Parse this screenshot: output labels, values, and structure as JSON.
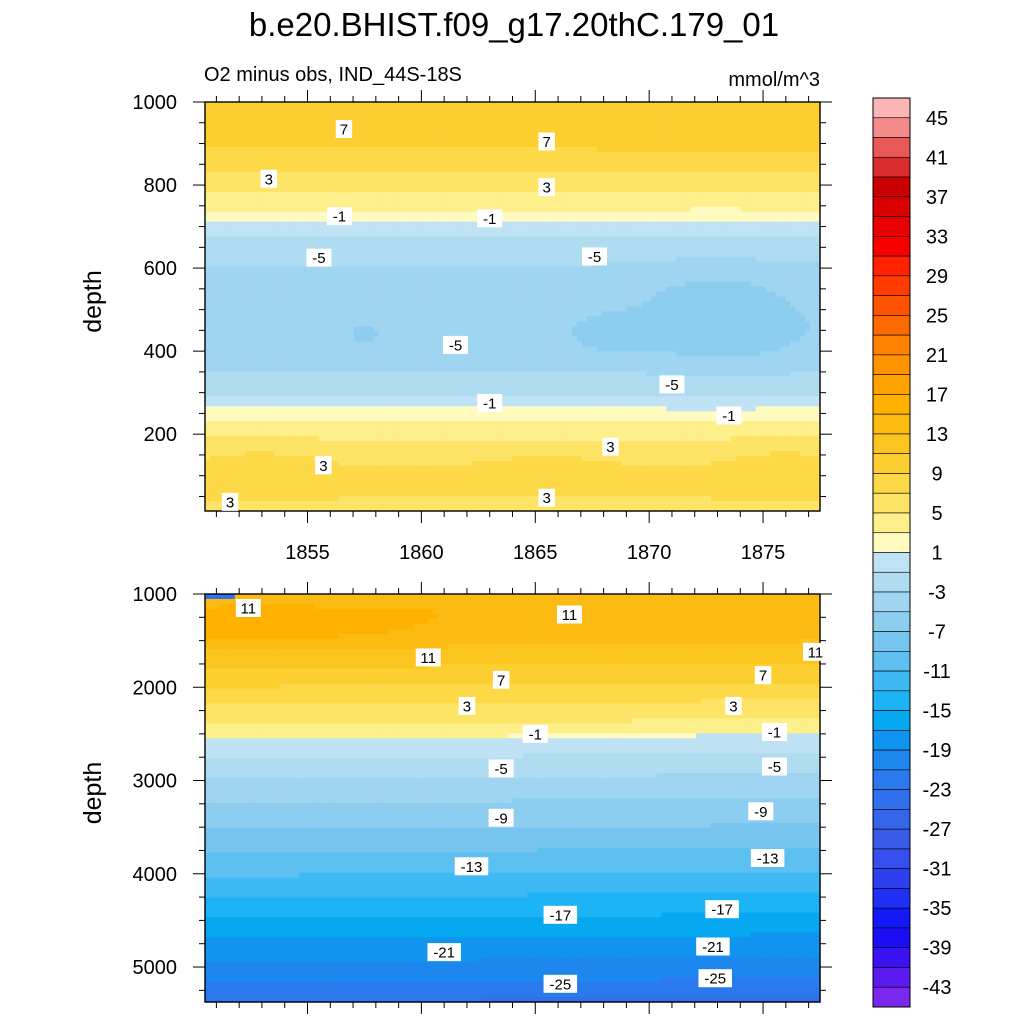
{
  "chart_data": {
    "type": "contour",
    "title": "b.e20.BHIST.f09_g17.20thC.179_01",
    "subtitle_left": "O2 minus obs, IND_44S-18S",
    "subtitle_right": "mmol/m^3",
    "colorbar": {
      "levels": [
        45,
        43,
        41,
        39,
        37,
        35,
        33,
        31,
        29,
        27,
        25,
        23,
        21,
        19,
        17,
        15,
        13,
        11,
        9,
        7,
        5,
        3,
        1,
        -1,
        -3,
        -5,
        -7,
        -9,
        -11,
        -13,
        -15,
        -17,
        -19,
        -21,
        -23,
        -25,
        -27,
        -29,
        -31,
        -33,
        -35,
        -37,
        -39,
        -41,
        -43,
        -45
      ],
      "tick_labels": [
        "45",
        "41",
        "37",
        "33",
        "29",
        "25",
        "21",
        "17",
        "13",
        "9",
        "5",
        "1",
        "-3",
        "-7",
        "-11",
        "-15",
        "-19",
        "-23",
        "-27",
        "-31",
        "-35",
        "-39",
        "-43"
      ],
      "colors": [
        "#fcb5b5",
        "#f38b8b",
        "#e95757",
        "#d92d2d",
        "#c80000",
        "#d80000",
        "#e90000",
        "#f80000",
        "#ff2200",
        "#ff3b00",
        "#ff5200",
        "#ff6a00",
        "#ff8100",
        "#ff9300",
        "#ffa300",
        "#ffb100",
        "#fbbb13",
        "#fbc41e",
        "#fcce2f",
        "#fdd948",
        "#fde467",
        "#fdef8a",
        "#fefac0",
        "#bfe2f4",
        "#b0dcf2",
        "#9fd5f1",
        "#8dcdf0",
        "#77c5ef",
        "#5dc0f1",
        "#3eb9f3",
        "#1db4f5",
        "#06a8f2",
        "#1094ef",
        "#1d87ee",
        "#2a7aed",
        "#3170ec",
        "#3566e9",
        "#3a5be8",
        "#364eed",
        "#2c40f0",
        "#1f2ff3",
        "#1218f6",
        "#1b0ef5",
        "#3a12f2",
        "#5a1af0",
        "#7a27ee"
      ]
    },
    "panels": [
      {
        "name": "upper",
        "xlabel": "",
        "ylabel": "depth",
        "xlim": [
          1850.5,
          1877.5
        ],
        "ylim": [
          1000,
          15
        ],
        "x_ticks": [
          1855,
          1860,
          1865,
          1870,
          1875
        ],
        "x_tick_labels": [
          "1855",
          "1860",
          "1865",
          "1870",
          "1875"
        ],
        "y_ticks": [
          200,
          400,
          600,
          800,
          1000
        ],
        "y_tick_labels": [
          "200",
          "400",
          "600",
          "800",
          "1000"
        ],
        "contour_labels": [
          {
            "text": "3",
            "x": 1851.6,
            "y": 37
          },
          {
            "text": "3",
            "x": 1865.5,
            "y": 47
          },
          {
            "text": "3",
            "x": 1855.7,
            "y": 125
          },
          {
            "text": "3",
            "x": 1868.3,
            "y": 170
          },
          {
            "text": "-1",
            "x": 1863.0,
            "y": 275
          },
          {
            "text": "-1",
            "x": 1873.5,
            "y": 245
          },
          {
            "text": "-5",
            "x": 1871.0,
            "y": 320
          },
          {
            "text": "-5",
            "x": 1861.5,
            "y": 415
          },
          {
            "text": "-5",
            "x": 1855.5,
            "y": 625
          },
          {
            "text": "-5",
            "x": 1867.6,
            "y": 628
          },
          {
            "text": "-1",
            "x": 1856.4,
            "y": 725
          },
          {
            "text": "-1",
            "x": 1863.0,
            "y": 720
          },
          {
            "text": "3",
            "x": 1865.5,
            "y": 795
          },
          {
            "text": "3",
            "x": 1853.3,
            "y": 815
          },
          {
            "text": "7",
            "x": 1865.5,
            "y": 905
          },
          {
            "text": "7",
            "x": 1856.6,
            "y": 935
          }
        ]
      },
      {
        "name": "lower",
        "xlabel": "",
        "ylabel": "depth",
        "xlim": [
          1850.5,
          1877.5
        ],
        "ylim": [
          1000,
          5375
        ],
        "x_ticks": [
          1855,
          1860,
          1865,
          1870,
          1875
        ],
        "y_ticks": [
          1000,
          2000,
          3000,
          4000,
          5000
        ],
        "y_tick_labels": [
          "1000",
          "2000",
          "3000",
          "4000",
          "5000"
        ],
        "contour_labels": [
          {
            "text": "11",
            "x": 1852.4,
            "y": 1150
          },
          {
            "text": "11",
            "x": 1866.5,
            "y": 1220
          },
          {
            "text": "11",
            "x": 1860.3,
            "y": 1680
          },
          {
            "text": "11",
            "x": 1877.3,
            "y": 1620
          },
          {
            "text": "7",
            "x": 1863.5,
            "y": 1920
          },
          {
            "text": "7",
            "x": 1875.0,
            "y": 1870
          },
          {
            "text": "3",
            "x": 1862.0,
            "y": 2200
          },
          {
            "text": "3",
            "x": 1873.7,
            "y": 2200
          },
          {
            "text": "-1",
            "x": 1865.0,
            "y": 2500
          },
          {
            "text": "-1",
            "x": 1875.5,
            "y": 2480
          },
          {
            "text": "-5",
            "x": 1863.5,
            "y": 2870
          },
          {
            "text": "-5",
            "x": 1875.5,
            "y": 2850
          },
          {
            "text": "-9",
            "x": 1863.5,
            "y": 3400
          },
          {
            "text": "-9",
            "x": 1874.9,
            "y": 3330
          },
          {
            "text": "-13",
            "x": 1862.2,
            "y": 3920
          },
          {
            "text": "-13",
            "x": 1875.2,
            "y": 3830
          },
          {
            "text": "-17",
            "x": 1866.1,
            "y": 4440
          },
          {
            "text": "-17",
            "x": 1873.2,
            "y": 4380
          },
          {
            "text": "-21",
            "x": 1861.0,
            "y": 4840
          },
          {
            "text": "-21",
            "x": 1872.8,
            "y": 4780
          },
          {
            "text": "-25",
            "x": 1866.1,
            "y": 5180
          },
          {
            "text": "-25",
            "x": 1872.9,
            "y": 5120
          }
        ]
      }
    ]
  }
}
